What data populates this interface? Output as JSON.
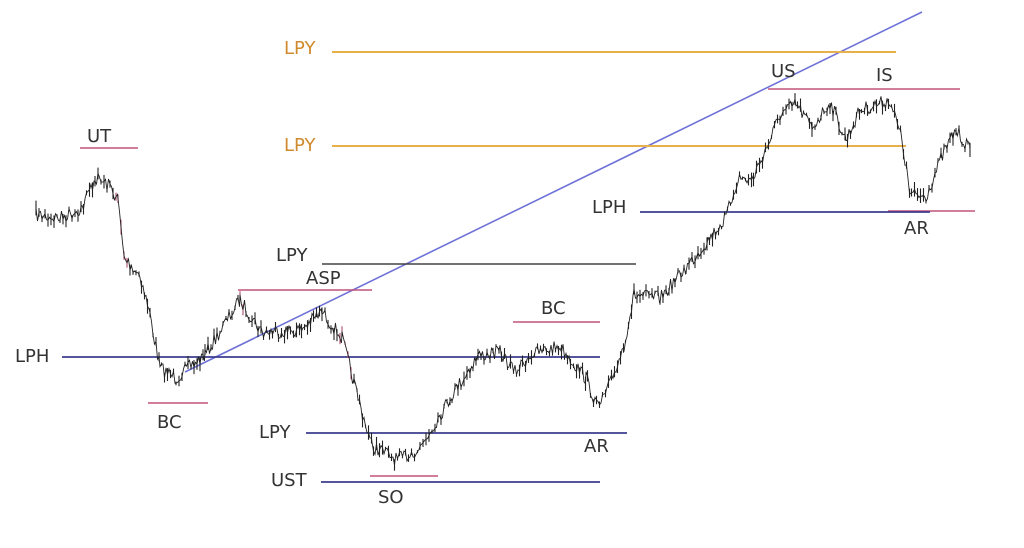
{
  "chart_data": {
    "type": "line",
    "title": "",
    "xlabel": "",
    "ylabel": "",
    "grid": false,
    "legend": "none",
    "colors": {
      "price": "#222222",
      "orange": "#e8b04a",
      "navy": "#3b3d8f",
      "pink": "#c2527a",
      "gray": "#444444",
      "trend": "#6e72d8"
    },
    "annotations": [
      "UT",
      "LPY",
      "LPY",
      "US",
      "IS",
      "LPH",
      "AR",
      "LPY",
      "ASP",
      "BC",
      "LPH",
      "BC",
      "LPY",
      "AR",
      "UST",
      "SO"
    ]
  }
}
